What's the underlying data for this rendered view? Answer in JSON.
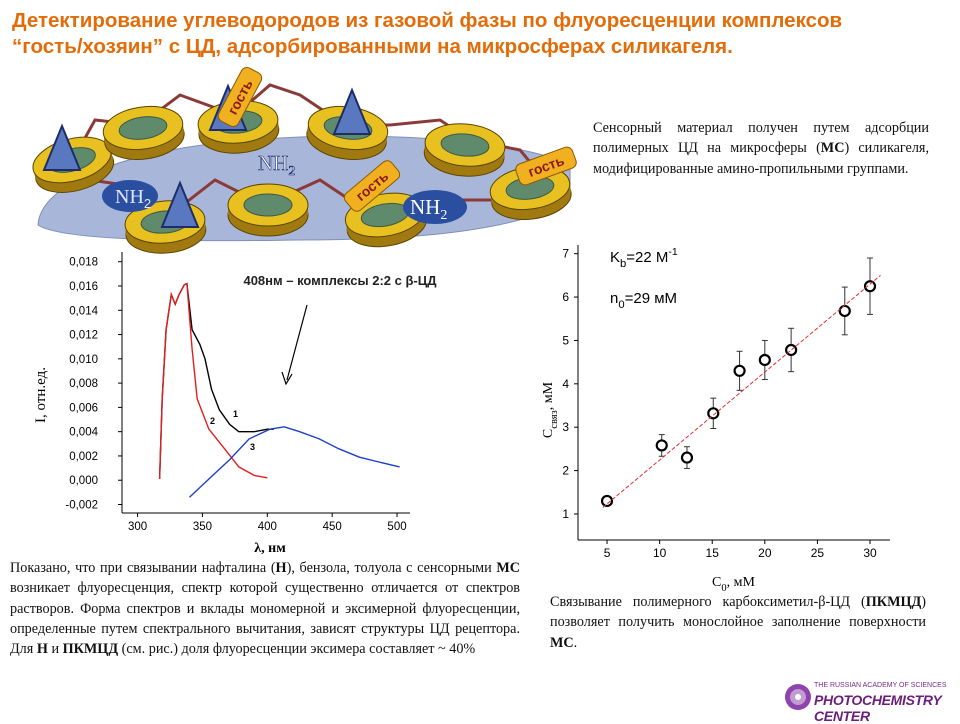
{
  "title": "Детектирование углеводородов из газовой фазы по флуоресценции комплексов “гость/хозяин”  с ЦД, адсорбированными на микросферах силикагеля.",
  "illustration": {
    "amine_labels": [
      {
        "text": "NH",
        "sub": "2"
      },
      {
        "text": "NH",
        "sub": "2"
      },
      {
        "text": "NH",
        "sub": "2"
      }
    ],
    "guest_labels": [
      "гость",
      "гость",
      "гость"
    ]
  },
  "paragraphs": {
    "right_top": [
      "Сенсорный материал получен путем адсорбции полимерных ЦД на микросферы (",
      "МС",
      ") силикагеля, модифицированные амино-пропильными группами."
    ],
    "left": [
      "Показано, что при связывании нафталина (",
      "Н",
      "), бензола, толуола с сенсорными ",
      "МС",
      "  возникает флуоресценция, спектр которой существенно отличается от спектров растворов. Форма спектров и вклады мономерной и эксимерной флуоресценции, определенные путем спектрального вычитания, зависят структуры ЦД рецептора. Для ",
      "Н",
      " и ",
      "ПКМЦД",
      " (см. рис.) доля флуоресценции эксимера составляет ~ 40%"
    ],
    "right_bottom": [
      "Связывание полимерного карбоксиметил-β-ЦД (",
      "ПКМЦД",
      ") позволяет получить монослойное заполнение поверхности ",
      "МС",
      "."
    ]
  },
  "logo": {
    "line1": "THE RUSSIAN ACADEMY OF SCIENCES",
    "line2": "PHOTOCHEMISTRY CENTER"
  },
  "chart_data": [
    {
      "type": "line",
      "annotation": "408нм – комплексы 2:2 с β-ЦД",
      "xlabel": "λ, нм",
      "ylabel": "I, отн.ед.",
      "xlim": [
        288,
        510
      ],
      "xticks": [
        300,
        350,
        400,
        450,
        500
      ],
      "ylim": [
        -0.0027,
        0.0188
      ],
      "yticks": [
        {
          "value": -0.002,
          "label": "-0,002"
        },
        {
          "value": 0,
          "label": "0,000"
        },
        {
          "value": 0.002,
          "label": "0,002"
        },
        {
          "value": 0.004,
          "label": "0,004"
        },
        {
          "value": 0.006,
          "label": "0,006"
        },
        {
          "value": 0.008,
          "label": "0,008"
        },
        {
          "value": 0.01,
          "label": "0,010"
        },
        {
          "value": 0.012,
          "label": "0,012"
        },
        {
          "value": 0.014,
          "label": "0,014"
        },
        {
          "value": 0.016,
          "label": "0,016"
        },
        {
          "value": 0.018,
          "label": "0,018"
        }
      ],
      "series": [
        {
          "name": "1",
          "color": "#000000",
          "x": [
            317,
            319,
            322,
            326,
            329,
            332,
            336,
            338,
            342,
            348,
            352,
            357,
            363,
            371,
            378,
            390,
            400,
            405
          ],
          "values": [
            0.0001,
            0.0067,
            0.0124,
            0.0153,
            0.0145,
            0.0153,
            0.0161,
            0.0162,
            0.0124,
            0.0112,
            0.01,
            0.0075,
            0.0058,
            0.0046,
            0.004,
            0.004,
            0.0042,
            0.0042
          ]
        },
        {
          "name": "2",
          "color": "#e02020",
          "x": [
            317,
            319,
            322,
            326,
            329,
            332,
            336,
            338,
            342,
            346,
            355,
            367,
            378,
            390,
            400
          ],
          "values": [
            0.0001,
            0.0067,
            0.0124,
            0.0153,
            0.0145,
            0.0153,
            0.0161,
            0.0162,
            0.0108,
            0.0067,
            0.0042,
            0.0026,
            0.0011,
            0.0004,
            0.0002
          ]
        },
        {
          "name": "3",
          "color": "#1f3fc8",
          "x": [
            340,
            355,
            371,
            386,
            402,
            413,
            425,
            440,
            455,
            471,
            486,
            502
          ],
          "values": [
            -0.0014,
            0.0001,
            0.0017,
            0.0034,
            0.0042,
            0.0044,
            0.004,
            0.0034,
            0.0026,
            0.0019,
            0.0015,
            0.0011
          ]
        }
      ]
    },
    {
      "type": "scatter",
      "annotations": [
        [
          "K",
          "b",
          "=22 М",
          "-1"
        ],
        [
          "n",
          "0",
          "=29 мМ"
        ]
      ],
      "xlabel": [
        "C",
        "0",
        ", мМ"
      ],
      "ylabel": [
        "C",
        "связ",
        ", мМ"
      ],
      "xlim": [
        2.24,
        31.9
      ],
      "xticks": [
        5,
        10,
        15,
        20,
        25,
        30
      ],
      "ylim": [
        0.4,
        7.2
      ],
      "yticks": [
        1,
        2,
        3,
        4,
        5,
        6,
        7
      ],
      "series": [
        {
          "color": "#000000",
          "x": [
            5,
            10.2,
            12.6,
            15.1,
            17.6,
            20,
            22.5,
            27.6,
            30
          ],
          "values": [
            1.3,
            2.58,
            2.3,
            3.32,
            4.3,
            4.55,
            4.78,
            5.68,
            6.25
          ],
          "errors": [
            0,
            0.25,
            0.25,
            0.35,
            0.45,
            0.45,
            0.5,
            0.55,
            0.65
          ]
        },
        {
          "color": "#e03030",
          "style": "dashed",
          "x": [
            4.6,
            31
          ],
          "values": [
            1.15,
            6.5
          ]
        }
      ]
    }
  ]
}
